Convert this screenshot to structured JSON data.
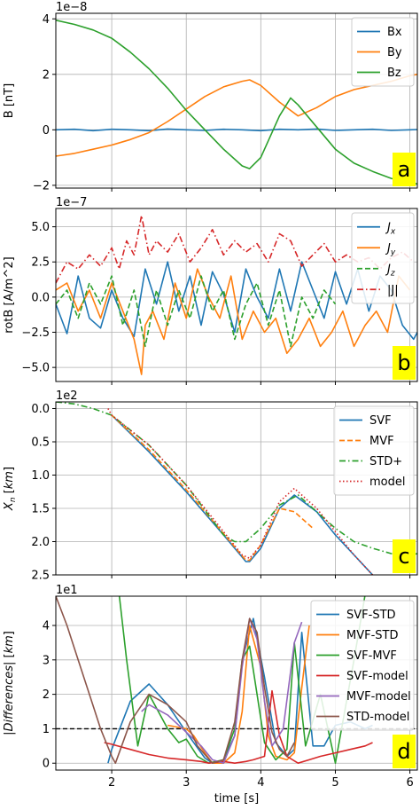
{
  "figure": {
    "xlabel": "time [s]"
  },
  "chart_data": [
    {
      "type": "line",
      "panel_label": "a",
      "ylabel": "B [nT]",
      "offset_text": "1e−8",
      "xlim": [
        1.25,
        6.1
      ],
      "ylim": [
        -2.1,
        4.2
      ],
      "xticks": [
        2,
        3,
        4,
        5,
        6
      ],
      "yticks": [
        -2,
        0,
        2,
        4
      ],
      "grid": true,
      "legend": "top-right",
      "series": [
        {
          "name": "Bx",
          "color": "#1f77b4",
          "style": "solid",
          "x": [
            1.25,
            1.5,
            1.75,
            2,
            2.25,
            2.5,
            2.75,
            3,
            3.25,
            3.5,
            3.75,
            4,
            4.25,
            4.5,
            4.75,
            5,
            5.25,
            5.5,
            5.75,
            6,
            6.1
          ],
          "y": [
            0,
            0.02,
            -0.03,
            0.02,
            0,
            -0.03,
            0.03,
            0,
            -0.02,
            0.02,
            0,
            -0.03,
            0.02,
            0,
            0.03,
            -0.02,
            0,
            0.02,
            -0.02,
            0,
            0.01
          ]
        },
        {
          "name": "By",
          "color": "#ff7f0e",
          "style": "solid",
          "x": [
            1.25,
            1.5,
            1.75,
            2,
            2.25,
            2.5,
            2.75,
            3,
            3.25,
            3.5,
            3.75,
            3.85,
            4,
            4.25,
            4.5,
            4.75,
            5,
            5.25,
            5.5,
            5.75,
            6,
            6.1
          ],
          "y": [
            -0.95,
            -0.85,
            -0.7,
            -0.55,
            -0.35,
            -0.1,
            0.3,
            0.75,
            1.2,
            1.55,
            1.75,
            1.8,
            1.6,
            1.0,
            0.5,
            0.8,
            1.2,
            1.45,
            1.6,
            1.75,
            1.95,
            2.0
          ]
        },
        {
          "name": "Bz",
          "color": "#2ca02c",
          "style": "solid",
          "x": [
            1.25,
            1.5,
            1.75,
            2,
            2.25,
            2.5,
            2.75,
            3,
            3.25,
            3.5,
            3.75,
            3.85,
            4,
            4.25,
            4.4,
            4.5,
            4.75,
            5,
            5.25,
            5.5,
            5.75,
            6,
            6.1
          ],
          "y": [
            3.95,
            3.8,
            3.6,
            3.3,
            2.8,
            2.2,
            1.5,
            0.7,
            0.0,
            -0.7,
            -1.3,
            -1.4,
            -1.0,
            0.5,
            1.15,
            0.9,
            0.1,
            -0.7,
            -1.2,
            -1.5,
            -1.75,
            -1.9,
            -1.95
          ]
        }
      ]
    },
    {
      "type": "line",
      "panel_label": "b",
      "ylabel": "rotB [A/m^2]",
      "offset_text": "1e−7",
      "xlim": [
        1.25,
        6.1
      ],
      "ylim": [
        -6.0,
        6.3
      ],
      "xticks": [
        2,
        3,
        4,
        5,
        6
      ],
      "yticks": [
        -5.0,
        -2.5,
        0.0,
        2.5,
        5.0
      ],
      "ytick_labels": [
        "−5.0",
        "−2.5",
        "0.0",
        "2.5",
        "5.0"
      ],
      "grid": true,
      "legend": "top-right",
      "series": [
        {
          "name": "J_x",
          "color": "#1f77b4",
          "style": "solid",
          "x": [
            1.25,
            1.4,
            1.55,
            1.7,
            1.85,
            2,
            2.15,
            2.3,
            2.45,
            2.6,
            2.75,
            2.9,
            3.05,
            3.2,
            3.35,
            3.5,
            3.65,
            3.8,
            3.95,
            4.1,
            4.25,
            4.4,
            4.55,
            4.7,
            4.85,
            5,
            5.15,
            5.3,
            5.45,
            5.6,
            5.75,
            5.9,
            6.05,
            6.1
          ],
          "y": [
            -0.5,
            -2.6,
            1.5,
            -1.5,
            -2.2,
            0.5,
            -1.5,
            -2.8,
            2.0,
            -0.5,
            2.5,
            -1.0,
            1.5,
            -2.0,
            1.8,
            0.2,
            -2.5,
            2.0,
            0.0,
            -1.5,
            2.0,
            -1.0,
            2.5,
            0.5,
            -1.5,
            1.8,
            -0.5,
            2.0,
            -1.0,
            1.5,
            0.5,
            -2.0,
            -3.0,
            -2.5
          ]
        },
        {
          "name": "J_y",
          "color": "#ff7f0e",
          "style": "solid",
          "x": [
            1.25,
            1.4,
            1.55,
            1.7,
            1.85,
            2,
            2.15,
            2.3,
            2.4,
            2.45,
            2.55,
            2.7,
            2.85,
            3,
            3.15,
            3.3,
            3.45,
            3.6,
            3.75,
            3.9,
            4.05,
            4.2,
            4.35,
            4.5,
            4.65,
            4.8,
            4.95,
            5.1,
            5.25,
            5.4,
            5.55,
            5.7,
            5.85,
            6
          ],
          "y": [
            0.5,
            1.0,
            -1.0,
            0.5,
            -1.5,
            1.0,
            -1.0,
            -3.0,
            -5.5,
            -2.0,
            -1.0,
            -3.0,
            1.0,
            -1.5,
            2.0,
            0.0,
            -1.5,
            1.5,
            -3.0,
            -1.0,
            -2.5,
            -1.5,
            -4.0,
            -3.0,
            -1.5,
            -3.5,
            -2.5,
            -1.0,
            -3.5,
            -2.0,
            -1.0,
            -2.5,
            1.5,
            0.5
          ]
        },
        {
          "name": "J_z",
          "color": "#2ca02c",
          "style": "dashed",
          "x": [
            1.25,
            1.4,
            1.55,
            1.7,
            1.85,
            2,
            2.15,
            2.3,
            2.45,
            2.6,
            2.75,
            2.9,
            3.05,
            3.2,
            3.35,
            3.5,
            3.65,
            3.8,
            3.95,
            4.1,
            4.25,
            4.4,
            4.55,
            4.7,
            4.85,
            5
          ],
          "y": [
            -0.5,
            0.5,
            -1.5,
            1.0,
            -0.5,
            1.5,
            -2.0,
            0.5,
            -3.5,
            0.5,
            -2.0,
            0.5,
            -1.5,
            1.5,
            -1.0,
            0.5,
            -3.0,
            -0.5,
            1.0,
            -2.0,
            0.5,
            -3.5,
            0.0,
            -1.5,
            0.5,
            -0.5
          ]
        },
        {
          "name": "|J|",
          "color": "#d62728",
          "style": "dashdot",
          "x": [
            1.25,
            1.4,
            1.55,
            1.7,
            1.85,
            2,
            2.1,
            2.2,
            2.3,
            2.4,
            2.5,
            2.6,
            2.75,
            2.9,
            3.05,
            3.2,
            3.35,
            3.5,
            3.65,
            3.8,
            3.95,
            4.1,
            4.25,
            4.4,
            4.55,
            4.7,
            4.85,
            5,
            5.15,
            5.3,
            5.45,
            5.6,
            5.75,
            5.9,
            6.05
          ],
          "y": [
            1.0,
            2.5,
            2.0,
            3.0,
            2.2,
            3.5,
            2.0,
            4.0,
            3.0,
            5.8,
            3.0,
            4.0,
            3.2,
            4.5,
            2.5,
            3.5,
            4.8,
            3.0,
            4.0,
            3.2,
            3.8,
            2.5,
            4.5,
            4.0,
            2.2,
            3.0,
            3.8,
            2.5,
            3.0,
            2.5,
            2.8,
            2.0,
            2.8,
            3.2,
            2.5
          ]
        }
      ]
    },
    {
      "type": "line",
      "panel_label": "c",
      "ylabel": "X_n [km]",
      "offset_text": "1e2",
      "xlim": [
        1.25,
        6.1
      ],
      "ylim": [
        2.5,
        -0.1
      ],
      "y_inverted": true,
      "xticks": [
        2,
        3,
        4,
        5,
        6
      ],
      "yticks": [
        0.0,
        0.5,
        1.0,
        1.5,
        2.0,
        2.5
      ],
      "grid": true,
      "legend": "top-right",
      "series": [
        {
          "name": "SVF",
          "color": "#1f77b4",
          "style": "solid",
          "x": [
            2.0,
            2.5,
            3.0,
            3.5,
            3.8,
            3.85,
            4.0,
            4.25,
            4.45,
            4.75,
            5.0,
            5.25,
            5.5
          ],
          "y": [
            0.1,
            0.65,
            1.25,
            1.9,
            2.3,
            2.3,
            2.1,
            1.5,
            1.3,
            1.55,
            1.9,
            2.2,
            2.5
          ]
        },
        {
          "name": "MVF",
          "color": "#ff7f0e",
          "style": "dashed",
          "x": [
            2.0,
            2.5,
            3.0,
            3.5,
            3.8,
            3.85,
            4.0,
            4.25,
            4.45,
            4.6,
            4.7
          ],
          "y": [
            0.1,
            0.62,
            1.22,
            1.88,
            2.28,
            2.28,
            2.05,
            1.5,
            1.55,
            1.7,
            1.8
          ]
        },
        {
          "name": "STD+",
          "color": "#2ca02c",
          "style": "dashdot",
          "x": [
            1.25,
            1.5,
            1.75,
            2.0,
            2.5,
            3.0,
            3.5,
            3.65,
            3.8,
            4.0,
            4.25,
            4.5,
            4.75,
            5.0,
            5.25,
            5.5,
            5.75,
            6.0,
            6.1
          ],
          "y": [
            -0.1,
            -0.07,
            0.0,
            0.1,
            0.55,
            1.15,
            1.9,
            2.0,
            2.0,
            1.8,
            1.45,
            1.3,
            1.55,
            1.8,
            2.0,
            2.1,
            2.18,
            2.2,
            2.18
          ]
        },
        {
          "name": "model",
          "color": "#d62728",
          "style": "dotted",
          "x": [
            1.95,
            2.0,
            2.5,
            3.0,
            3.5,
            3.75,
            3.85,
            4.0,
            4.25,
            4.45,
            4.75,
            5.0,
            5.25,
            5.5
          ],
          "y": [
            0.0,
            0.1,
            0.55,
            1.15,
            1.85,
            2.2,
            2.25,
            2.05,
            1.4,
            1.2,
            1.5,
            1.85,
            2.2,
            2.5
          ]
        }
      ]
    },
    {
      "type": "line",
      "panel_label": "d",
      "ylabel": "|Differences| [km]",
      "offset_text": "1e1",
      "xlim": [
        1.25,
        6.1
      ],
      "ylim": [
        -0.2,
        4.85
      ],
      "xticks": [
        2,
        3,
        4,
        5,
        6
      ],
      "xtick_labels": [
        "2",
        "3",
        "4",
        "5",
        "6"
      ],
      "yticks": [
        0,
        1,
        2,
        3,
        4
      ],
      "grid": true,
      "legend": "top-right",
      "reference_line": {
        "y": 1.0,
        "color": "#000000",
        "style": "dashed"
      },
      "series": [
        {
          "name": "SVF-STD",
          "color": "#1f77b4",
          "style": "solid",
          "x": [
            1.95,
            2.0,
            2.25,
            2.5,
            2.75,
            3.0,
            3.25,
            3.35,
            3.5,
            3.65,
            3.75,
            3.9,
            4.05,
            4.2,
            4.35,
            4.45,
            4.55,
            4.7,
            4.85,
            5.0,
            5.2,
            5.4,
            5.5
          ],
          "y": [
            0.0,
            0.4,
            1.8,
            2.3,
            1.7,
            0.9,
            0.15,
            0.0,
            0.1,
            0.8,
            3.0,
            4.2,
            2.5,
            0.6,
            0.2,
            0.4,
            3.8,
            0.5,
            0.5,
            1.1,
            1.2,
            1.0,
            1.1
          ]
        },
        {
          "name": "MVF-STD",
          "color": "#ff7f0e",
          "style": "solid",
          "x": [
            2.75,
            3.0,
            3.1,
            3.25,
            3.35,
            3.5,
            3.65,
            3.75,
            3.85,
            4.0,
            4.1,
            4.2,
            4.35,
            4.45,
            4.55,
            4.65
          ],
          "y": [
            1.1,
            1.0,
            0.8,
            0.3,
            0.0,
            0.0,
            0.3,
            1.5,
            4.0,
            2.8,
            0.8,
            0.2,
            0.1,
            0.3,
            2.2,
            4.0
          ]
        },
        {
          "name": "SVF-MVF",
          "color": "#2ca02c",
          "style": "solid",
          "x": [
            2.1,
            2.2,
            2.35,
            2.5,
            2.75,
            2.9,
            3.0,
            3.15,
            3.3,
            3.5,
            3.65,
            3.75,
            3.85,
            3.95,
            4.05,
            4.2,
            4.35,
            4.45,
            4.6,
            4.8,
            5.0,
            5.25,
            5.4
          ],
          "y": [
            4.9,
            3.0,
            0.5,
            2.0,
            1.0,
            0.6,
            0.7,
            0.2,
            0.0,
            0.1,
            1.0,
            3.0,
            3.4,
            2.0,
            0.6,
            0.1,
            0.4,
            3.5,
            0.5,
            2.0,
            0.0,
            3.0,
            4.9
          ]
        },
        {
          "name": "SVF-model",
          "color": "#d62728",
          "style": "solid",
          "x": [
            1.9,
            2.0,
            2.25,
            2.5,
            2.75,
            3.0,
            3.2,
            3.3,
            3.5,
            3.65,
            3.8,
            3.9,
            4.05,
            4.15,
            4.25,
            4.35,
            4.5,
            4.65,
            4.8,
            5.0,
            5.2,
            5.4,
            5.5
          ],
          "y": [
            0.6,
            0.55,
            0.4,
            0.25,
            0.15,
            0.1,
            0.05,
            0.0,
            0.05,
            0.0,
            0.05,
            0.1,
            0.2,
            2.1,
            0.8,
            0.2,
            0.0,
            0.1,
            0.2,
            0.3,
            0.4,
            0.5,
            0.6
          ]
        },
        {
          "name": "MVF-model",
          "color": "#9467bd",
          "style": "solid",
          "x": [
            2.4,
            2.5,
            2.75,
            3.0,
            3.2,
            3.35,
            3.5,
            3.65,
            3.75,
            3.85,
            3.95,
            4.05,
            4.15,
            4.3,
            4.45,
            4.55
          ],
          "y": [
            1.5,
            1.7,
            1.4,
            0.9,
            0.5,
            0.1,
            0.0,
            0.8,
            2.8,
            4.2,
            3.6,
            1.8,
            0.5,
            1.0,
            3.5,
            4.1
          ]
        },
        {
          "name": "STD-model",
          "color": "#8c564b",
          "style": "solid",
          "x": [
            1.25,
            1.4,
            1.55,
            1.7,
            1.85,
            2.0,
            2.05,
            2.25,
            2.5,
            2.75,
            3.0,
            3.15,
            3.35,
            3.5,
            3.65,
            3.75,
            3.85,
            3.95,
            4.05,
            4.15,
            4.25,
            4.35,
            4.45
          ],
          "y": [
            4.85,
            4.0,
            3.0,
            2.0,
            1.0,
            0.2,
            0.0,
            1.2,
            2.0,
            1.7,
            1.2,
            0.5,
            0.0,
            0.1,
            1.2,
            3.0,
            4.2,
            3.8,
            2.2,
            0.9,
            0.4,
            0.2,
            0.6
          ]
        }
      ]
    }
  ]
}
